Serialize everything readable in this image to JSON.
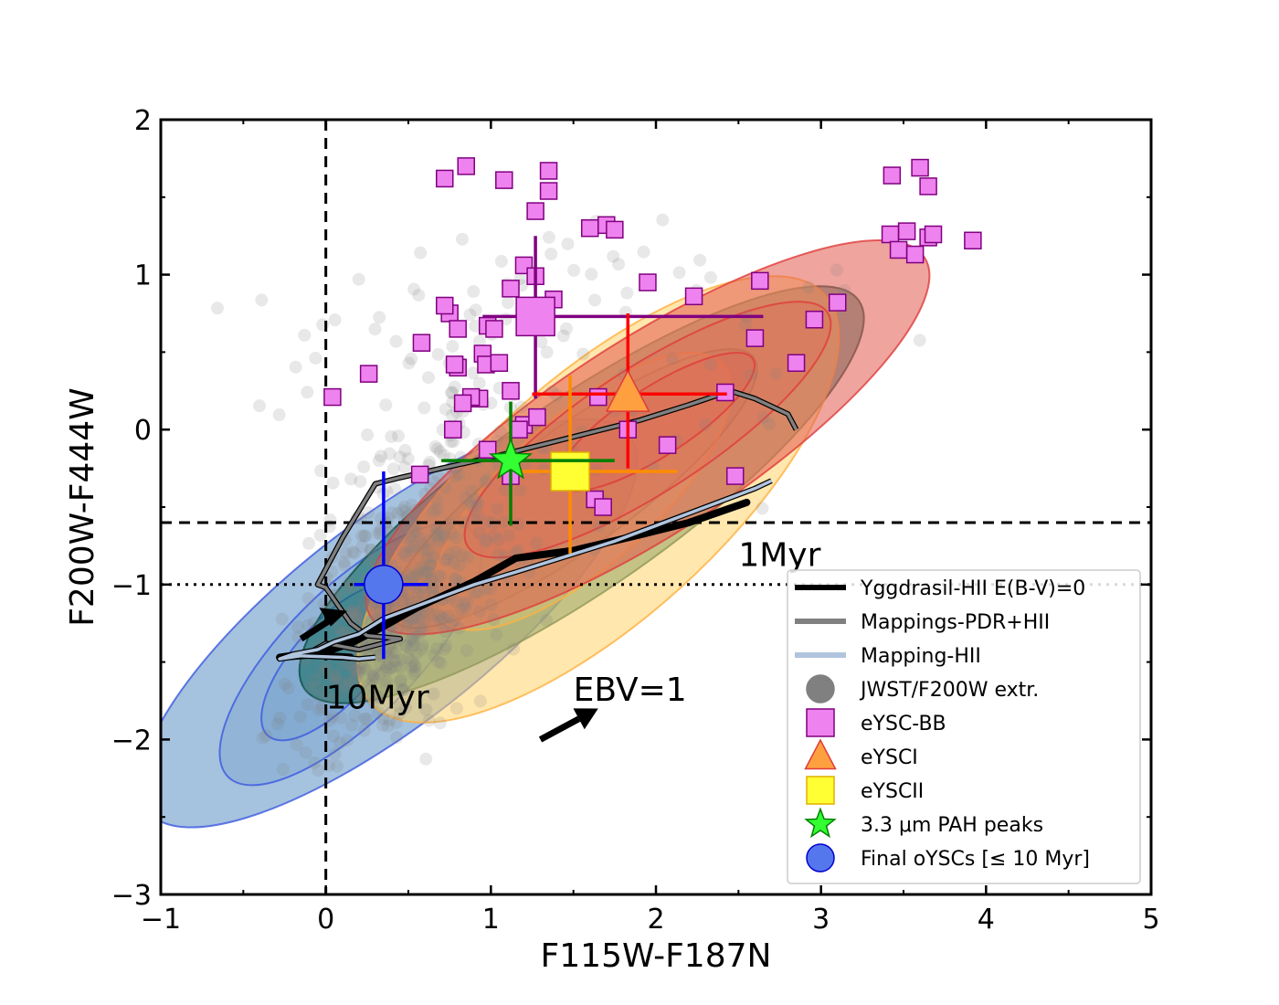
{
  "chart_data": {
    "type": "scatter",
    "title": "",
    "xlabel": "F115W-F187N",
    "ylabel": "F200W-F444W",
    "xlim": [
      -1,
      5
    ],
    "ylim": [
      -3,
      2
    ],
    "xticks": [
      -1,
      0,
      1,
      2,
      3,
      4,
      5
    ],
    "yticks": [
      -3,
      -2,
      -1,
      0,
      1,
      2
    ],
    "xtick_labels": [
      "−1",
      "0",
      "1",
      "2",
      "3",
      "4",
      "5"
    ],
    "ytick_labels": [
      "−3",
      "−2",
      "−1",
      "0",
      "1",
      "2"
    ],
    "grid": false,
    "legend_position": "lower-right",
    "reference_lines": [
      {
        "orientation": "vertical",
        "value": 0,
        "style": "dashed"
      },
      {
        "orientation": "horizontal",
        "value": -0.6,
        "style": "dashed"
      },
      {
        "orientation": "horizontal",
        "value": -1.0,
        "style": "dotted"
      }
    ],
    "legend": [
      {
        "label": "Yggdrasil-HII E(B-V)=0",
        "marker": "line",
        "color": "#000000"
      },
      {
        "label": "Mappings-PDR+HII",
        "marker": "line",
        "color": "#808080"
      },
      {
        "label": "Mapping-HII",
        "marker": "line",
        "color": "#b0c4de"
      },
      {
        "label": "JWST/F200W extr.",
        "marker": "circle",
        "color": "#808080"
      },
      {
        "label": "eYSC-BB",
        "marker": "square",
        "color": "#ee82ee"
      },
      {
        "label": "eYSCI",
        "marker": "triangle",
        "color": "#ffa040"
      },
      {
        "label": "eYSCII",
        "marker": "square",
        "color": "#ffff33"
      },
      {
        "label": "3.3 μm PAH peaks",
        "marker": "star",
        "color": "#33ff33"
      },
      {
        "label": "Final oYSCs [≤  10 Myr]",
        "marker": "circle",
        "color": "#5577ee"
      }
    ],
    "annotations": [
      {
        "text": "1Myr",
        "x": 2.5,
        "y": -0.88
      },
      {
        "text": "10Myr",
        "x": 0.0,
        "y": -1.8
      },
      {
        "text": "EBV=1",
        "x": 1.5,
        "y": -1.75
      }
    ],
    "reddening_vector": {
      "label": "EBV=1",
      "from": [
        1.3,
        -2.0
      ],
      "to": [
        1.65,
        -1.8
      ]
    },
    "models": [
      {
        "name": "Yggdrasil-HII E(B-V)=0",
        "color": "#000000",
        "x": [
          2.55,
          2.2,
          1.9,
          1.5,
          1.15,
          0.9,
          0.55,
          0.35,
          0.15,
          -0.05,
          -0.28,
          -0.15,
          0.15
        ],
        "y": [
          -0.47,
          -0.6,
          -0.68,
          -0.78,
          -0.83,
          -0.98,
          -1.15,
          -1.27,
          -1.38,
          -1.45,
          -1.47,
          -1.45,
          -1.47
        ]
      },
      {
        "name": "Mappings-PDR+HII",
        "color": "#808080",
        "x": [
          2.85,
          2.8,
          2.6,
          2.45,
          2.2,
          1.9,
          1.6,
          1.3,
          1.0,
          0.7,
          0.45,
          0.3,
          0.1,
          0.0,
          -0.05,
          0.0,
          0.15,
          0.25,
          0.45,
          0.2,
          0.0,
          -0.1,
          -0.25
        ],
        "y": [
          -0.0,
          0.1,
          0.2,
          0.25,
          0.16,
          0.06,
          -0.02,
          -0.1,
          -0.18,
          -0.25,
          -0.31,
          -0.35,
          -0.7,
          -0.9,
          -1.0,
          -1.02,
          -1.25,
          -1.33,
          -1.35,
          -1.42,
          -1.38,
          -1.44,
          -1.47
        ]
      },
      {
        "name": "Mapping-HII",
        "color": "#b0c4de",
        "x": [
          2.7,
          2.6,
          2.35,
          2.05,
          1.75,
          1.45,
          1.15,
          0.9,
          0.6,
          0.35,
          0.2,
          0.05,
          -0.05,
          -0.2,
          -0.28,
          -0.15,
          0.1,
          0.2,
          0.3
        ],
        "y": [
          -0.33,
          -0.38,
          -0.48,
          -0.6,
          -0.72,
          -0.82,
          -0.92,
          -1.0,
          -1.12,
          -1.22,
          -1.32,
          -1.37,
          -1.42,
          -1.45,
          -1.48,
          -1.46,
          -1.47,
          -1.48,
          -1.47
        ]
      }
    ],
    "density_regions": [
      {
        "name": "JWST/F200W extr. density",
        "color": "#5b8fc2",
        "edge": "#3b59e0",
        "levels": [
          {
            "cx": 0.38,
            "cy": -1.25,
            "rx": 1.85,
            "ry": 0.65,
            "angle": 38
          },
          {
            "cx": 0.15,
            "cy": -1.45,
            "rx": 1.05,
            "ry": 0.42,
            "angle": 45
          },
          {
            "cx": 0.05,
            "cy": -1.5,
            "rx": 0.6,
            "ry": 0.26,
            "angle": 48
          }
        ]
      },
      {
        "name": "3.3 μm PAH peaks density",
        "color": "#11695a",
        "edge": "#0d4d44",
        "levels": [
          {
            "cx": 1.55,
            "cy": -0.42,
            "rx": 2.05,
            "ry": 0.6,
            "angle": 35
          },
          {
            "cx": 1.5,
            "cy": -0.38,
            "rx": 1.35,
            "ry": 0.38,
            "angle": 36
          }
        ]
      },
      {
        "name": "eYSCII density",
        "color": "#ffd36a",
        "edge": "#ffb040",
        "levels": [
          {
            "cx": 1.65,
            "cy": -0.45,
            "rx": 1.85,
            "ry": 0.78,
            "angle": 42
          },
          {
            "cx": 1.55,
            "cy": -0.4,
            "rx": 1.15,
            "ry": 0.48,
            "angle": 42
          }
        ]
      },
      {
        "name": "eYSCI density",
        "color": "#e25a4e",
        "edge": "#e03b3b",
        "levels": [
          {
            "cx": 1.95,
            "cy": -0.05,
            "rx": 2.0,
            "ry": 0.62,
            "angle": 33
          },
          {
            "cx": 1.95,
            "cy": 0.0,
            "rx": 1.3,
            "ry": 0.4,
            "angle": 33
          },
          {
            "cx": 2.0,
            "cy": 0.05,
            "rx": 0.7,
            "ry": 0.22,
            "angle": 33
          }
        ]
      }
    ],
    "series": [
      {
        "name": "JWST/F200W extr.",
        "marker": "circle",
        "color": "#808080"
      },
      {
        "name": "eYSC-BB",
        "marker": "square",
        "color": "#ee82ee",
        "x": [
          0.72,
          0.85,
          1.08,
          1.35,
          1.35,
          1.27,
          1.6,
          1.7,
          1.75,
          1.2,
          1.27,
          1.12,
          1.38,
          0.75,
          0.72,
          0.8,
          0.98,
          1.02,
          0.58,
          0.95,
          0.97,
          1.05,
          0.8,
          0.78,
          0.93,
          0.88,
          0.83,
          1.12,
          1.2,
          1.17,
          1.28,
          1.65,
          1.83,
          2.07,
          1.95,
          2.23,
          2.63,
          2.6,
          2.85,
          2.96,
          3.1,
          2.42,
          2.48,
          0.57,
          1.63,
          1.68,
          0.26,
          0.04,
          0.77,
          0.98,
          1.12,
          3.43,
          3.6,
          3.65,
          3.42,
          3.52,
          3.47,
          3.65,
          3.57,
          3.68,
          3.92
        ],
        "y": [
          1.62,
          1.7,
          1.61,
          1.67,
          1.54,
          1.41,
          1.3,
          1.32,
          1.29,
          1.06,
          0.99,
          0.91,
          0.84,
          0.75,
          0.8,
          0.65,
          0.67,
          0.65,
          0.56,
          0.49,
          0.42,
          0.43,
          0.4,
          0.42,
          0.2,
          0.21,
          0.17,
          0.25,
          0.03,
          -0.0,
          0.08,
          0.21,
          0.0,
          -0.1,
          0.95,
          0.86,
          0.96,
          0.59,
          0.43,
          0.71,
          0.82,
          0.24,
          -0.3,
          -0.29,
          -0.45,
          -0.5,
          0.36,
          0.21,
          0.0,
          -0.13,
          -0.3,
          1.64,
          1.69,
          1.57,
          1.26,
          1.28,
          1.16,
          1.24,
          1.13,
          1.26,
          1.22
        ]
      },
      {
        "name": "eYSC-BB median",
        "marker": "square",
        "color": "#ee82ee",
        "x": [
          1.27
        ],
        "y": [
          0.73
        ],
        "xerr": [
          [
            0.32
          ],
          [
            1.38
          ]
        ],
        "yerr": [
          [
            0.53
          ],
          [
            0.52
          ]
        ],
        "errcolor": "#800080"
      },
      {
        "name": "eYSCI",
        "marker": "triangle",
        "color": "#ffa040",
        "x": [
          1.83
        ],
        "y": [
          0.23
        ],
        "xerr": [
          [
            0.58
          ],
          [
            0.6
          ]
        ],
        "yerr": [
          [
            0.48
          ],
          [
            0.52
          ]
        ],
        "errcolor": "#ff0000"
      },
      {
        "name": "eYSCII",
        "marker": "square",
        "color": "#ffff33",
        "x": [
          1.48
        ],
        "y": [
          -0.27
        ],
        "xerr": [
          [
            0.33
          ],
          [
            0.65
          ]
        ],
        "yerr": [
          [
            0.53
          ],
          [
            0.62
          ]
        ],
        "errcolor": "#ff8c00"
      },
      {
        "name": "3.3 μm PAH peaks",
        "marker": "star",
        "color": "#33ff33",
        "x": [
          1.12
        ],
        "y": [
          -0.2
        ],
        "xerr": [
          [
            0.42
          ],
          [
            0.63
          ]
        ],
        "yerr": [
          [
            0.42
          ],
          [
            0.38
          ]
        ],
        "errcolor": "#008000"
      },
      {
        "name": "Final oYSCs [≤  10 Myr]",
        "marker": "circle",
        "color": "#5577ee",
        "x": [
          0.35
        ],
        "y": [
          -1.0
        ],
        "xerr": [
          [
            0.18
          ],
          [
            0.27
          ]
        ],
        "yerr": [
          [
            0.48
          ],
          [
            0.73
          ]
        ],
        "errcolor": "#0000ff"
      }
    ]
  }
}
